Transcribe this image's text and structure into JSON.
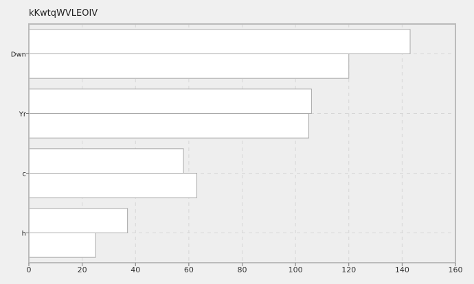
{
  "chart_data": {
    "type": "bar",
    "orientation": "horizontal",
    "title": "kKwtqWVLEOIV",
    "categories": [
      "Dwn",
      "Yr",
      "c",
      "h"
    ],
    "series": [
      {
        "values": [
          143,
          106,
          58,
          37
        ]
      },
      {
        "values": [
          120,
          105,
          63,
          25
        ]
      }
    ],
    "xlim": [
      0,
      160
    ],
    "xticks": [
      0,
      20,
      40,
      60,
      80,
      100,
      120,
      140,
      160
    ],
    "xlabel": "",
    "ylabel": "",
    "grid": true,
    "colors": {
      "bar_fill": "#ffffff",
      "bar_stroke": "#aaaaaa",
      "plot_bg": "#eeeeee",
      "frame": "#bbbbbb",
      "grid": "#d6d6d6"
    }
  }
}
